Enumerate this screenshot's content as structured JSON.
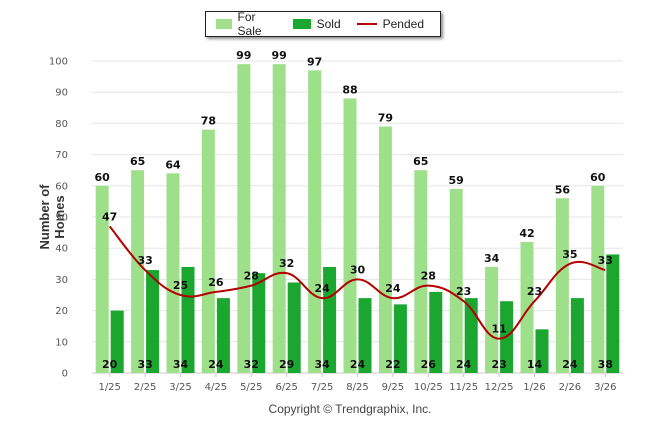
{
  "chart_data": {
    "type": "bar",
    "ylabel": "Number of Homes",
    "ylim": [
      0,
      100
    ],
    "yticks": [
      0,
      10,
      20,
      30,
      40,
      50,
      60,
      70,
      80,
      90,
      100
    ],
    "categories": [
      "1/25",
      "2/25",
      "3/25",
      "4/25",
      "5/25",
      "6/25",
      "7/25",
      "8/25",
      "9/25",
      "10/25",
      "11/25",
      "12/25",
      "1/26",
      "2/26",
      "3/26"
    ],
    "series": [
      {
        "name": "For Sale",
        "kind": "bar",
        "color": "#9ee08a",
        "values": [
          60,
          65,
          64,
          78,
          99,
          99,
          97,
          88,
          79,
          65,
          59,
          34,
          42,
          56,
          60
        ]
      },
      {
        "name": "Sold",
        "kind": "bar",
        "color": "#1aa62f",
        "values": [
          20,
          33,
          34,
          24,
          32,
          29,
          34,
          24,
          22,
          26,
          24,
          23,
          14,
          24,
          38
        ]
      },
      {
        "name": "Pended",
        "kind": "line",
        "color": "#b30000",
        "values": [
          47,
          33,
          25,
          26,
          28,
          32,
          24,
          30,
          24,
          28,
          23,
          11,
          23,
          35,
          33
        ]
      }
    ],
    "legend_position": "top-center",
    "grid": true
  },
  "footer": "Copyright © Trendgraphix, Inc."
}
